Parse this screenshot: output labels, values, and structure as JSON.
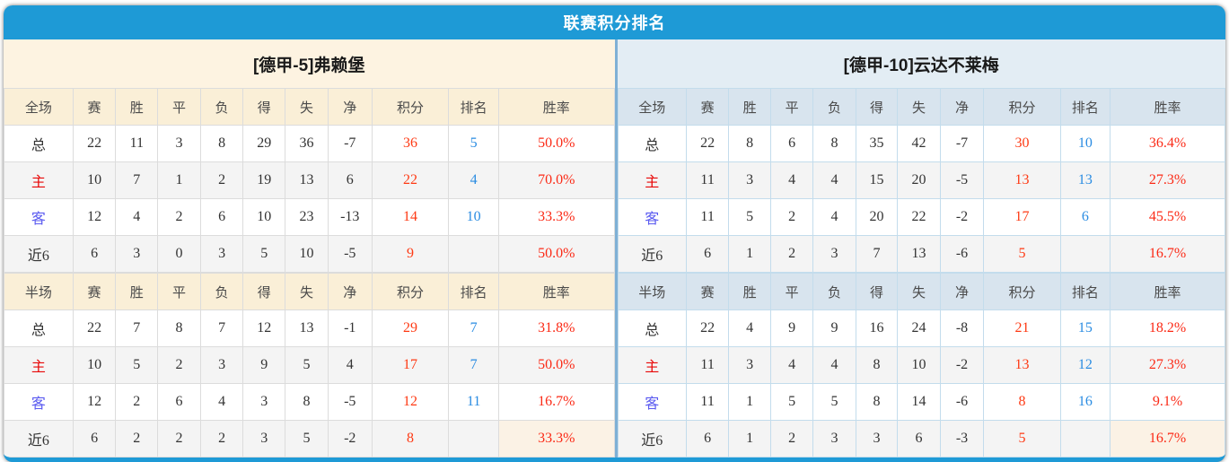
{
  "header": {
    "title": "联赛积分排名"
  },
  "colors": {
    "accent_blue": "#1e9ad6",
    "left_theme_cream": "#fdf3e1",
    "left_header_cream": "#faefd7",
    "right_theme_blue": "#e3edf4",
    "right_header_blue": "#d8e4ee",
    "points_orange": "#fe3a14",
    "rank_blue": "#2a8ce2",
    "rate_red": "#fb2a16",
    "home_label_red": "#e80707",
    "away_label_violet": "#5a5af0"
  },
  "panels": [
    {
      "team_header": {
        "bracket": "[德甲-5]",
        "name": "弗赖堡"
      },
      "tables": [
        {
          "scope": "全场",
          "columns": [
            "赛",
            "胜",
            "平",
            "负",
            "得",
            "失",
            "净",
            "积分",
            "排名",
            "胜率"
          ],
          "rows": [
            {
              "label": "总",
              "type": "total",
              "stats": [
                "22",
                "11",
                "3",
                "8",
                "29",
                "36",
                "-7"
              ],
              "points": "36",
              "rank": "5",
              "rate": "50.0%",
              "rate_highlight": false
            },
            {
              "label": "主",
              "type": "home",
              "stats": [
                "10",
                "7",
                "1",
                "2",
                "19",
                "13",
                "6"
              ],
              "points": "22",
              "rank": "4",
              "rate": "70.0%",
              "rate_highlight": false
            },
            {
              "label": "客",
              "type": "away",
              "stats": [
                "12",
                "4",
                "2",
                "6",
                "10",
                "23",
                "-13"
              ],
              "points": "14",
              "rank": "10",
              "rate": "33.3%",
              "rate_highlight": false
            },
            {
              "label": "近6",
              "type": "recent",
              "stats": [
                "6",
                "3",
                "0",
                "3",
                "5",
                "10",
                "-5"
              ],
              "points": "9",
              "rank": "",
              "rate": "50.0%",
              "rate_highlight": false
            }
          ]
        },
        {
          "scope": "半场",
          "columns": [
            "赛",
            "胜",
            "平",
            "负",
            "得",
            "失",
            "净",
            "积分",
            "排名",
            "胜率"
          ],
          "rows": [
            {
              "label": "总",
              "type": "total",
              "stats": [
                "22",
                "7",
                "8",
                "7",
                "12",
                "13",
                "-1"
              ],
              "points": "29",
              "rank": "7",
              "rate": "31.8%",
              "rate_highlight": false
            },
            {
              "label": "主",
              "type": "home",
              "stats": [
                "10",
                "5",
                "2",
                "3",
                "9",
                "5",
                "4"
              ],
              "points": "17",
              "rank": "7",
              "rate": "50.0%",
              "rate_highlight": false
            },
            {
              "label": "客",
              "type": "away",
              "stats": [
                "12",
                "2",
                "6",
                "4",
                "3",
                "8",
                "-5"
              ],
              "points": "12",
              "rank": "11",
              "rate": "16.7%",
              "rate_highlight": false
            },
            {
              "label": "近6",
              "type": "recent",
              "stats": [
                "6",
                "2",
                "2",
                "2",
                "3",
                "5",
                "-2"
              ],
              "points": "8",
              "rank": "",
              "rate": "33.3%",
              "rate_highlight": true
            }
          ]
        }
      ]
    },
    {
      "team_header": {
        "bracket": "[德甲-10]",
        "name": "云达不莱梅"
      },
      "tables": [
        {
          "scope": "全场",
          "columns": [
            "赛",
            "胜",
            "平",
            "负",
            "得",
            "失",
            "净",
            "积分",
            "排名",
            "胜率"
          ],
          "rows": [
            {
              "label": "总",
              "type": "total",
              "stats": [
                "22",
                "8",
                "6",
                "8",
                "35",
                "42",
                "-7"
              ],
              "points": "30",
              "rank": "10",
              "rate": "36.4%",
              "rate_highlight": false
            },
            {
              "label": "主",
              "type": "home",
              "stats": [
                "11",
                "3",
                "4",
                "4",
                "15",
                "20",
                "-5"
              ],
              "points": "13",
              "rank": "13",
              "rate": "27.3%",
              "rate_highlight": false
            },
            {
              "label": "客",
              "type": "away",
              "stats": [
                "11",
                "5",
                "2",
                "4",
                "20",
                "22",
                "-2"
              ],
              "points": "17",
              "rank": "6",
              "rate": "45.5%",
              "rate_highlight": false
            },
            {
              "label": "近6",
              "type": "recent",
              "stats": [
                "6",
                "1",
                "2",
                "3",
                "7",
                "13",
                "-6"
              ],
              "points": "5",
              "rank": "",
              "rate": "16.7%",
              "rate_highlight": false
            }
          ]
        },
        {
          "scope": "半场",
          "columns": [
            "赛",
            "胜",
            "平",
            "负",
            "得",
            "失",
            "净",
            "积分",
            "排名",
            "胜率"
          ],
          "rows": [
            {
              "label": "总",
              "type": "total",
              "stats": [
                "22",
                "4",
                "9",
                "9",
                "16",
                "24",
                "-8"
              ],
              "points": "21",
              "rank": "15",
              "rate": "18.2%",
              "rate_highlight": false
            },
            {
              "label": "主",
              "type": "home",
              "stats": [
                "11",
                "3",
                "4",
                "4",
                "8",
                "10",
                "-2"
              ],
              "points": "13",
              "rank": "12",
              "rate": "27.3%",
              "rate_highlight": false
            },
            {
              "label": "客",
              "type": "away",
              "stats": [
                "11",
                "1",
                "5",
                "5",
                "8",
                "14",
                "-6"
              ],
              "points": "8",
              "rank": "16",
              "rate": "9.1%",
              "rate_highlight": false
            },
            {
              "label": "近6",
              "type": "recent",
              "stats": [
                "6",
                "1",
                "2",
                "3",
                "3",
                "6",
                "-3"
              ],
              "points": "5",
              "rank": "",
              "rate": "16.7%",
              "rate_highlight": true
            }
          ]
        }
      ]
    }
  ]
}
